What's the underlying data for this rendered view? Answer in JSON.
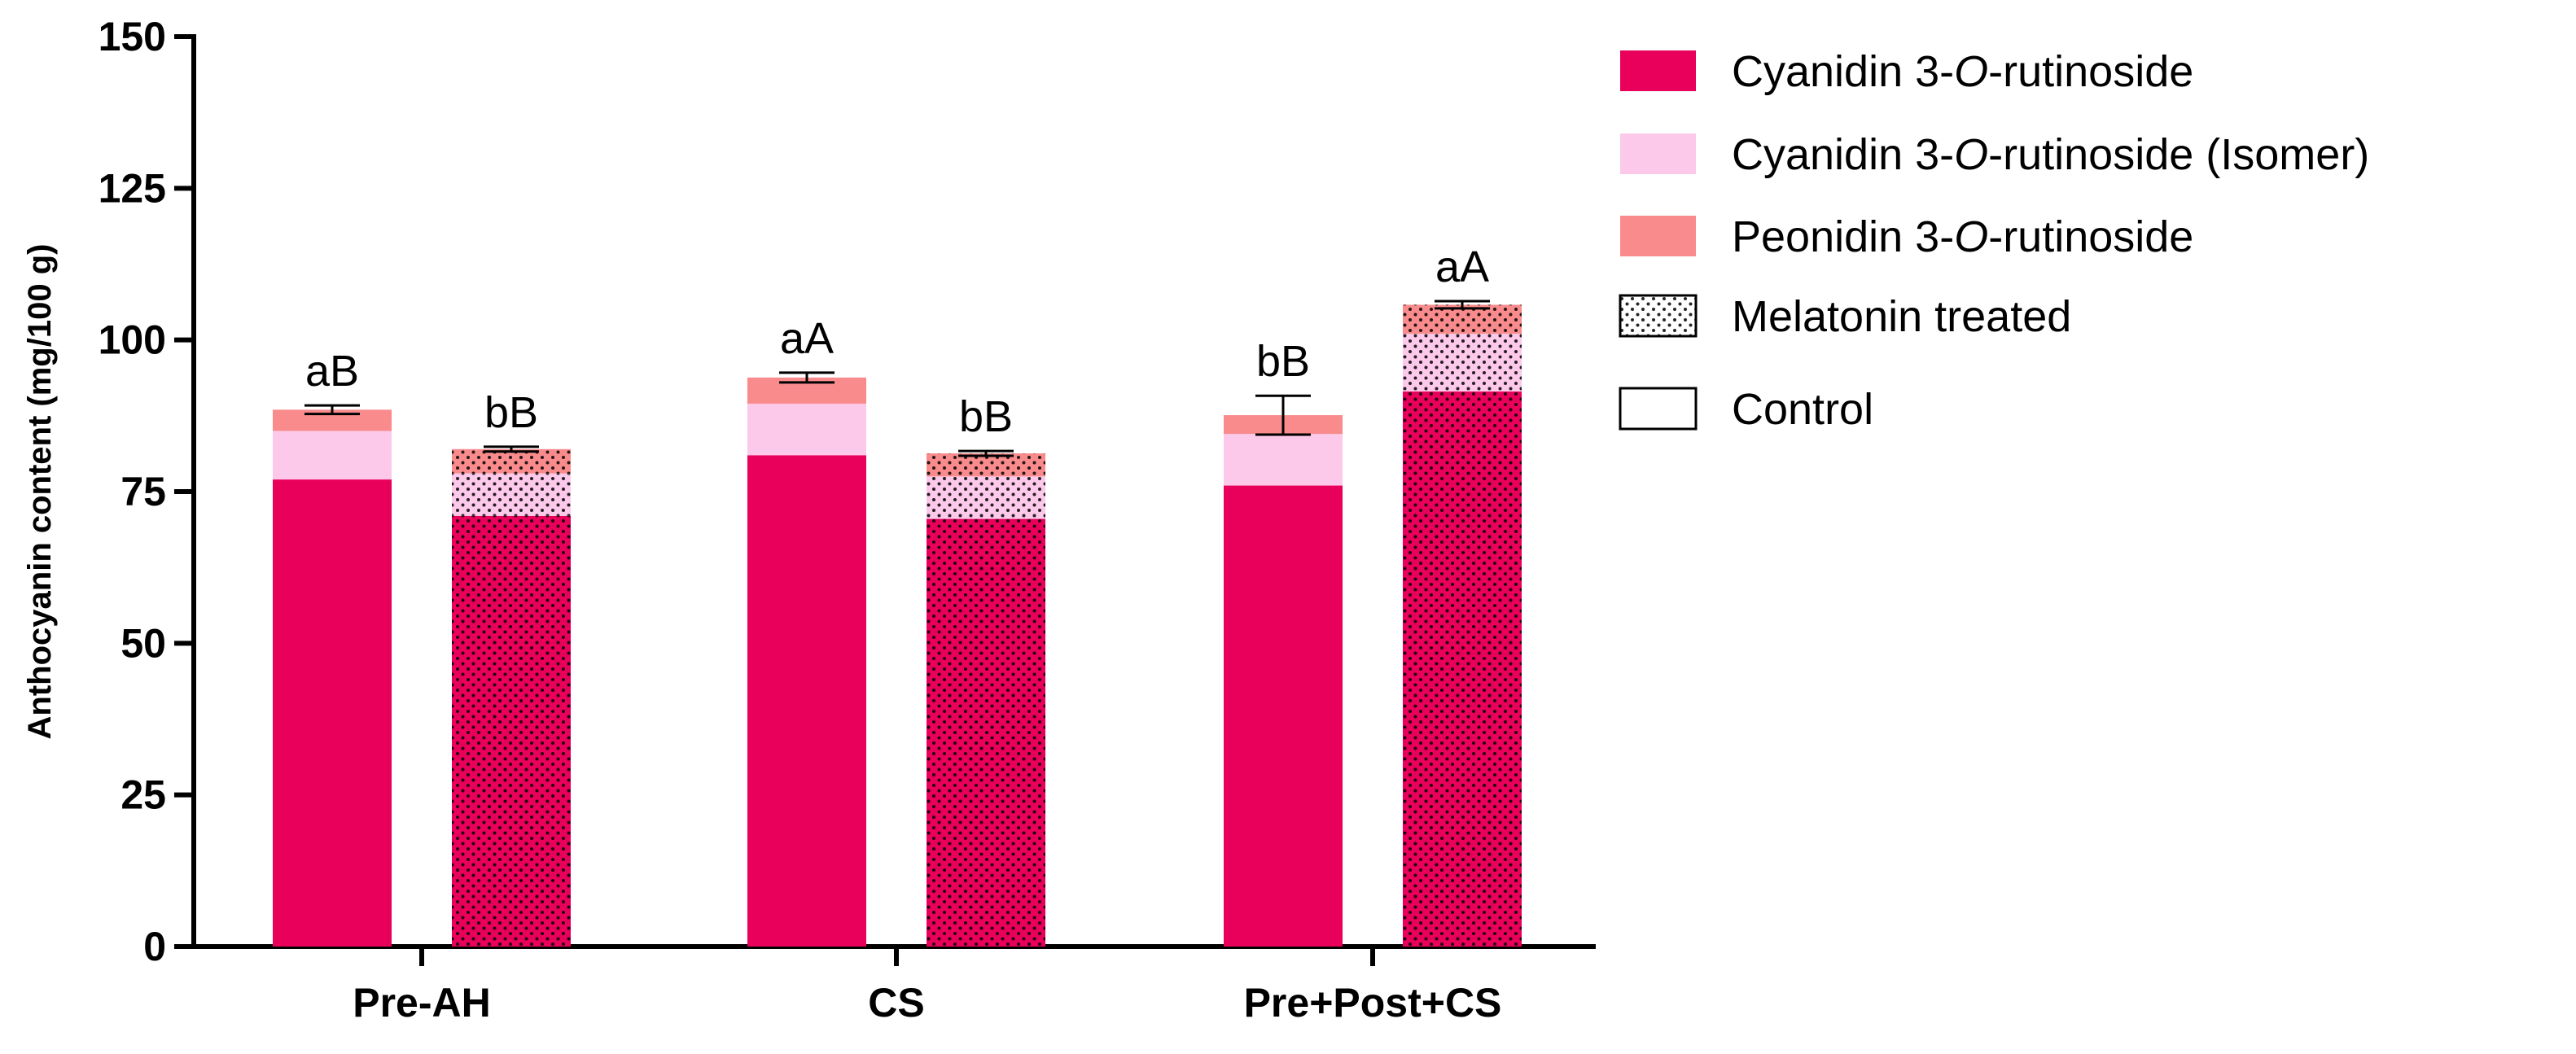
{
  "chart_data": {
    "type": "bar",
    "stacked": true,
    "title": "",
    "xlabel": "",
    "ylabel": "Anthocyanin content (mg/100 g)",
    "ylim": [
      0,
      150
    ],
    "yticks": [
      0,
      25,
      50,
      75,
      100,
      125,
      150
    ],
    "categories": [
      "Pre-AH",
      "CS",
      "Pre+Post+CS"
    ],
    "treatments": [
      "Control",
      "Melatonin treated"
    ],
    "series": [
      {
        "name": "Cyanidin 3-O-rutinoside",
        "color": "#E8005A",
        "values": {
          "Control": [
            77,
            81,
            76
          ],
          "Melatonin treated": [
            71,
            70.5,
            91.5
          ]
        }
      },
      {
        "name": "Cyanidin 3-O-rutinoside (Isomer)",
        "color": "#FCC9EA",
        "values": {
          "Control": [
            8,
            8.5,
            8.5
          ],
          "Melatonin treated": [
            7,
            7,
            9.5
          ]
        }
      },
      {
        "name": "Peonidin 3-O-rutinoside",
        "color": "#F98B8D",
        "values": {
          "Control": [
            3.5,
            4.3,
            3.1
          ],
          "Melatonin treated": [
            4,
            3.8,
            4.8
          ]
        }
      }
    ],
    "error_bars": {
      "Control": [
        0.7,
        0.8,
        3.2
      ],
      "Melatonin treated": [
        0.4,
        0.4,
        0.6
      ]
    },
    "significance_labels": {
      "Control": [
        "aB",
        "aA",
        "bB"
      ],
      "Melatonin treated": [
        "bB",
        "bB",
        "aA"
      ]
    },
    "legend": {
      "position": "right",
      "entries": [
        {
          "label": "Cyanidin 3-O-rutinoside",
          "pre": "Cyanidin 3-",
          "ital": "O",
          "post": "-rutinoside",
          "swatch": "#E8005A",
          "pattern": false
        },
        {
          "label": "Cyanidin 3-O-rutinoside (Isomer)",
          "pre": "Cyanidin 3-",
          "ital": "O",
          "post": "-rutinoside (Isomer)",
          "swatch": "#FCC9EA",
          "pattern": false
        },
        {
          "label": "Peonidin 3-O-rutinoside",
          "pre": "Peonidin 3-",
          "ital": "O",
          "post": "-rutinoside",
          "swatch": "#F98B8D",
          "pattern": false
        },
        {
          "label": "Melatonin treated",
          "pre": "Melatonin treated",
          "ital": "",
          "post": "",
          "swatch": "#ffffff",
          "pattern": true
        },
        {
          "label": "Control",
          "pre": "Control",
          "ital": "",
          "post": "",
          "swatch": "#ffffff",
          "pattern": false
        }
      ]
    }
  }
}
